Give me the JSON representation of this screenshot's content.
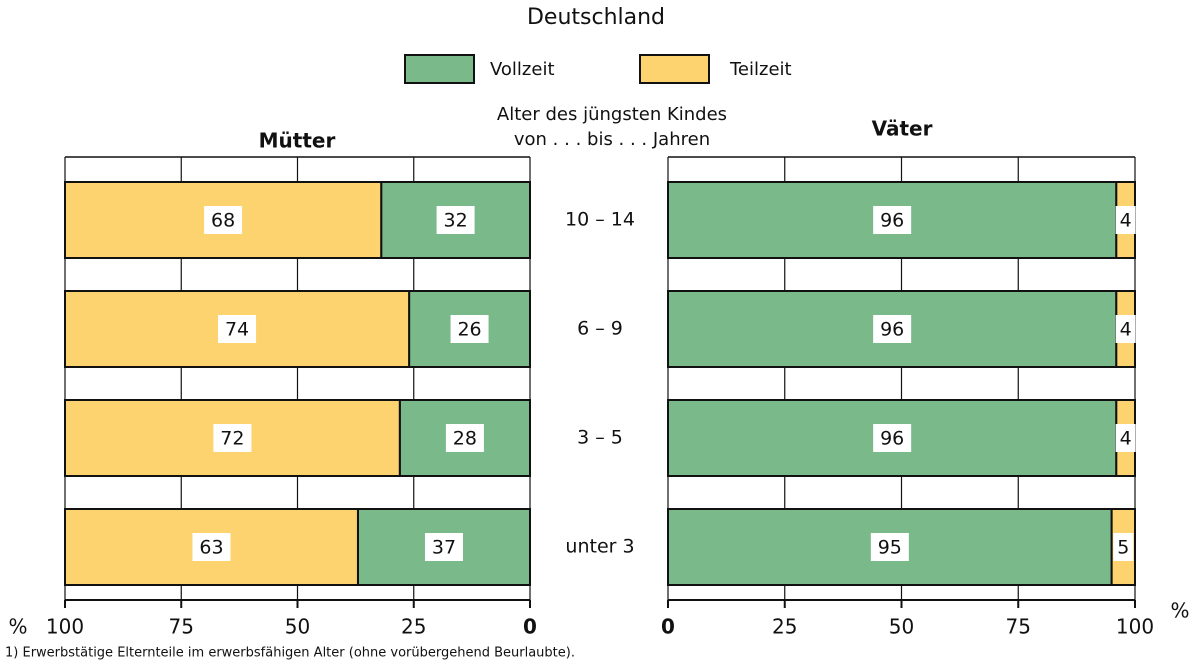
{
  "title": "Deutschland",
  "category_label": [
    "Alter des jüngsten Kindes",
    "von . . . bis . . . Jahren"
  ],
  "footnote": "1) Erwerbstätige Elternteile im erwerbsfähigen Alter (ohne vorübergehend Beurlaubte).",
  "chart_data": [
    {
      "type": "stacked_bar_horizontal",
      "title": "Mütter",
      "categories": [
        "10 – 14",
        "6 – 9",
        "3 – 5",
        "unter 3"
      ],
      "series": [
        {
          "name": "Vollzeit",
          "color": "#7ab98a",
          "values": [
            32,
            26,
            28,
            37
          ]
        },
        {
          "name": "Teilzeit",
          "color": "#fdd36f",
          "values": [
            68,
            74,
            72,
            63
          ]
        }
      ],
      "xlim": [
        100,
        0
      ],
      "xticks": [
        100,
        75,
        50,
        25,
        0
      ],
      "xunit": "%",
      "grid": true
    },
    {
      "type": "stacked_bar_horizontal",
      "title": "Väter",
      "series": [
        {
          "name": "Vollzeit",
          "color": "#7ab98a",
          "values": [
            96,
            96,
            96,
            95
          ]
        },
        {
          "name": "Teilzeit",
          "color": "#fdd36f",
          "values": [
            4,
            4,
            4,
            5
          ]
        }
      ],
      "xlim": [
        0,
        100
      ],
      "xticks": [
        0,
        25,
        50,
        75,
        100
      ],
      "xunit": "%",
      "grid": true
    }
  ]
}
